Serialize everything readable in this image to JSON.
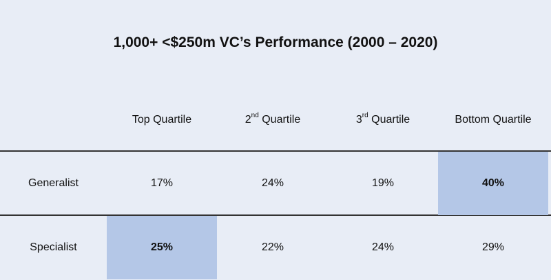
{
  "header": {
    "title": "1,000+ <$250m VC’s Performance (2000 – 2020)"
  },
  "table": {
    "columns": [
      {
        "text": "Top Quartile"
      },
      {
        "text": "2",
        "sup": "nd",
        "rest": " Quartile"
      },
      {
        "text": "3",
        "sup": "rd",
        "rest": " Quartile"
      },
      {
        "text": "Bottom Quartile"
      }
    ],
    "rows": [
      {
        "label": "Generalist",
        "cells": [
          {
            "text": "17%"
          },
          {
            "text": "24%"
          },
          {
            "text": "19%"
          },
          {
            "text": "40%",
            "highlight": true
          }
        ]
      },
      {
        "label": "Specialist",
        "cells": [
          {
            "text": "25%",
            "highlight": true
          },
          {
            "text": "22%"
          },
          {
            "text": "24%"
          },
          {
            "text": "29%"
          }
        ]
      }
    ]
  }
}
